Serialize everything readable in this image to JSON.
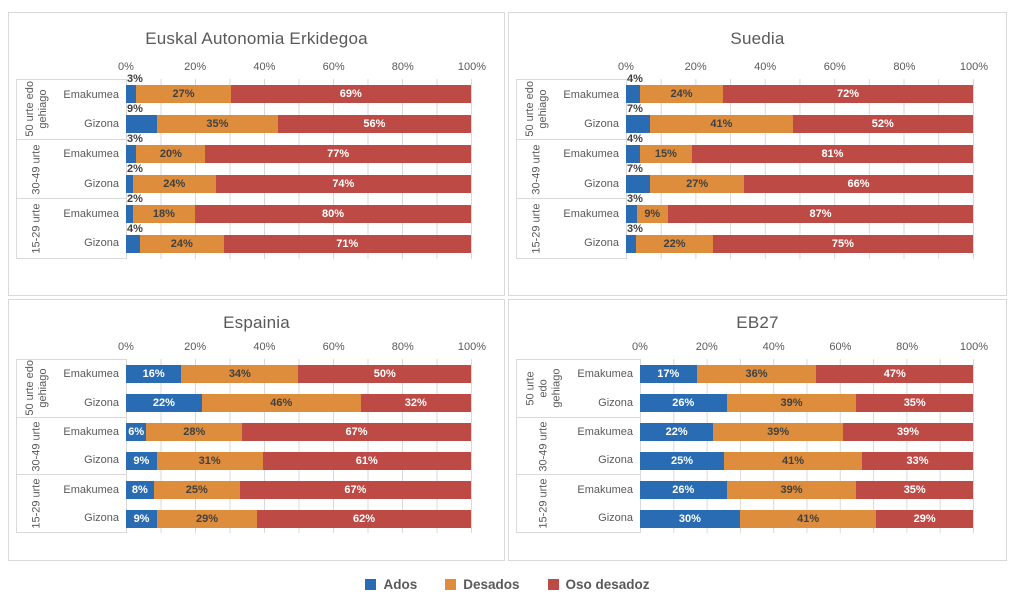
{
  "colors": {
    "ados": "#2A6CB4",
    "desados": "#DE8D3C",
    "oso_desadoz": "#BE4A45",
    "gridline": "#d9d9d9",
    "panel_border": "#d9d9d9",
    "text_gray": "#595959",
    "label_dark": "#404040",
    "label_white": "#ffffff"
  },
  "legend": {
    "items": [
      {
        "label": "Ados",
        "color": "#2A6CB4"
      },
      {
        "label": "Desados",
        "color": "#DE8D3C"
      },
      {
        "label": "Oso desadoz",
        "color": "#BE4A45"
      }
    ]
  },
  "chart_data": [
    {
      "type": "bar",
      "orientation": "horizontal",
      "stacked_100": true,
      "title": "Euskal Autonomia Erkidegoa",
      "series_names": [
        "Ados",
        "Desados",
        "Oso desadoz"
      ],
      "x_ticks": [
        "0%",
        "20%",
        "40%",
        "60%",
        "80%",
        "100%"
      ],
      "xlim": [
        0,
        100
      ],
      "grid": true,
      "ados_labels_outside": true,
      "groups": [
        {
          "label": "50 urte edo\ngehiago",
          "rows": [
            {
              "label": "Emakumea",
              "values": [
                3,
                27,
                69
              ],
              "value_labels": [
                "3%",
                "27%",
                "69%"
              ]
            },
            {
              "label": "Gizona",
              "values": [
                9,
                35,
                56
              ],
              "value_labels": [
                "9%",
                "35%",
                "56%"
              ]
            }
          ]
        },
        {
          "label": "30-49 urte",
          "rows": [
            {
              "label": "Emakumea",
              "values": [
                3,
                20,
                77
              ],
              "value_labels": [
                "3%",
                "20%",
                "77%"
              ]
            },
            {
              "label": "Gizona",
              "values": [
                2,
                24,
                74
              ],
              "value_labels": [
                "2%",
                "24%",
                "74%"
              ]
            }
          ]
        },
        {
          "label": "15-29 urte",
          "rows": [
            {
              "label": "Emakumea",
              "values": [
                2,
                18,
                80
              ],
              "value_labels": [
                "2%",
                "18%",
                "80%"
              ]
            },
            {
              "label": "Gizona",
              "values": [
                4,
                24,
                71
              ],
              "value_labels": [
                "4%",
                "24%",
                "71%"
              ]
            }
          ]
        }
      ]
    },
    {
      "type": "bar",
      "orientation": "horizontal",
      "stacked_100": true,
      "title": "Suedia",
      "series_names": [
        "Ados",
        "Desados",
        "Oso desadoz"
      ],
      "x_ticks": [
        "0%",
        "20%",
        "40%",
        "60%",
        "80%",
        "100%"
      ],
      "xlim": [
        0,
        100
      ],
      "grid": true,
      "ados_labels_outside": true,
      "groups": [
        {
          "label": "50 urte edo\ngehiago",
          "rows": [
            {
              "label": "Emakumea",
              "values": [
                4,
                24,
                72
              ],
              "value_labels": [
                "4%",
                "24%",
                "72%"
              ]
            },
            {
              "label": "Gizona",
              "values": [
                7,
                41,
                52
              ],
              "value_labels": [
                "7%",
                "41%",
                "52%"
              ]
            }
          ]
        },
        {
          "label": "30-49 urte",
          "rows": [
            {
              "label": "Emakumea",
              "values": [
                4,
                15,
                81
              ],
              "value_labels": [
                "4%",
                "15%",
                "81%"
              ]
            },
            {
              "label": "Gizona",
              "values": [
                7,
                27,
                66
              ],
              "value_labels": [
                "7%",
                "27%",
                "66%"
              ]
            }
          ]
        },
        {
          "label": "15-29 urte",
          "rows": [
            {
              "label": "Emakumea",
              "values": [
                3,
                9,
                87
              ],
              "value_labels": [
                "3%",
                "9%",
                "87%"
              ]
            },
            {
              "label": "Gizona",
              "values": [
                3,
                22,
                75
              ],
              "value_labels": [
                "3%",
                "22%",
                "75%"
              ]
            }
          ]
        }
      ]
    },
    {
      "type": "bar",
      "orientation": "horizontal",
      "stacked_100": true,
      "title": "Espainia",
      "series_names": [
        "Ados",
        "Desados",
        "Oso desadoz"
      ],
      "x_ticks": [
        "0%",
        "20%",
        "40%",
        "60%",
        "80%",
        "100%"
      ],
      "xlim": [
        0,
        100
      ],
      "grid": true,
      "ados_labels_outside": false,
      "groups": [
        {
          "label": "50 urte edo\ngehiago",
          "rows": [
            {
              "label": "Emakumea",
              "values": [
                16,
                34,
                50
              ],
              "value_labels": [
                "16%",
                "34%",
                "50%"
              ]
            },
            {
              "label": "Gizona",
              "values": [
                22,
                46,
                32
              ],
              "value_labels": [
                "22%",
                "46%",
                "32%"
              ]
            }
          ]
        },
        {
          "label": "30-49 urte",
          "rows": [
            {
              "label": "Emakumea",
              "values": [
                6,
                28,
                67
              ],
              "value_labels": [
                "6%",
                "28%",
                "67%"
              ]
            },
            {
              "label": "Gizona",
              "values": [
                9,
                31,
                61
              ],
              "value_labels": [
                "9%",
                "31%",
                "61%"
              ]
            }
          ]
        },
        {
          "label": "15-29 urte",
          "rows": [
            {
              "label": "Emakumea",
              "values": [
                8,
                25,
                67
              ],
              "value_labels": [
                "8%",
                "25%",
                "67%"
              ]
            },
            {
              "label": "Gizona",
              "values": [
                9,
                29,
                62
              ],
              "value_labels": [
                "9%",
                "29%",
                "62%"
              ]
            }
          ]
        }
      ]
    },
    {
      "type": "bar",
      "orientation": "horizontal",
      "stacked_100": true,
      "title": "EB27",
      "series_names": [
        "Ados",
        "Desados",
        "Oso desadoz"
      ],
      "x_ticks": [
        "0%",
        "20%",
        "40%",
        "60%",
        "80%",
        "100%"
      ],
      "xlim": [
        0,
        100
      ],
      "grid": true,
      "ados_labels_outside": false,
      "groups": [
        {
          "label": "50 urte\nedo\ngehiago",
          "rows": [
            {
              "label": "Emakumea",
              "values": [
                17,
                36,
                47
              ],
              "value_labels": [
                "17%",
                "36%",
                "47%"
              ]
            },
            {
              "label": "Gizona",
              "values": [
                26,
                39,
                35
              ],
              "value_labels": [
                "26%",
                "39%",
                "35%"
              ]
            }
          ]
        },
        {
          "label": "30-49 urte",
          "rows": [
            {
              "label": "Emakumea",
              "values": [
                22,
                39,
                39
              ],
              "value_labels": [
                "22%",
                "39%",
                "39%"
              ]
            },
            {
              "label": "Gizona",
              "values": [
                25,
                41,
                33
              ],
              "value_labels": [
                "25%",
                "41%",
                "33%"
              ]
            }
          ]
        },
        {
          "label": "15-29 urte",
          "rows": [
            {
              "label": "Emakumea",
              "values": [
                26,
                39,
                35
              ],
              "value_labels": [
                "26%",
                "39%",
                "35%"
              ]
            },
            {
              "label": "Gizona",
              "values": [
                30,
                41,
                29
              ],
              "value_labels": [
                "30%",
                "41%",
                "29%"
              ]
            }
          ]
        }
      ]
    }
  ]
}
